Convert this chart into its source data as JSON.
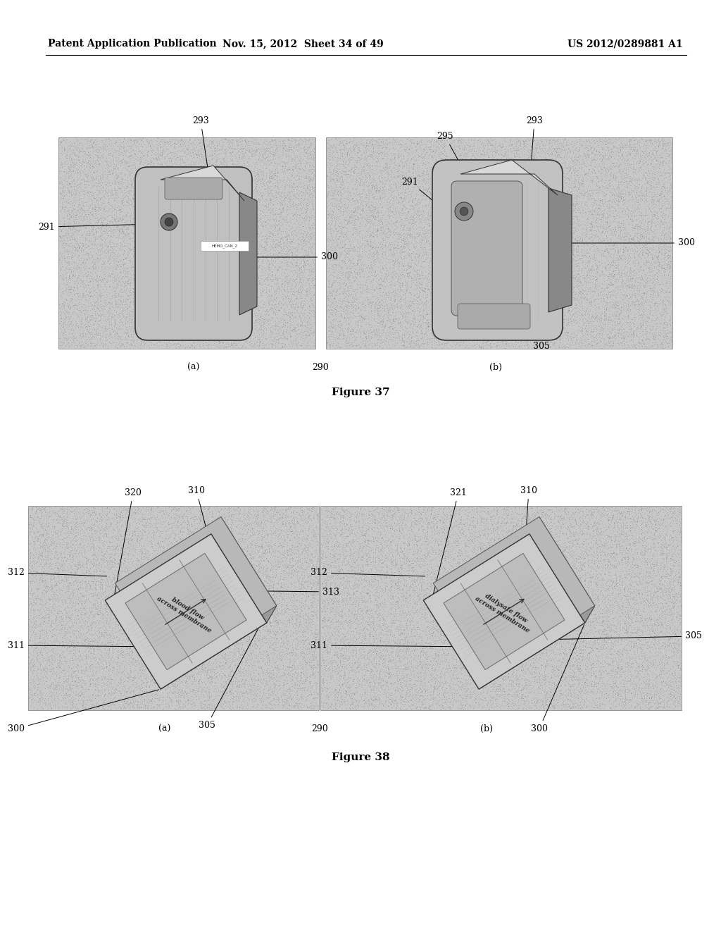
{
  "background_color": "#ffffff",
  "header_left": "Patent Application Publication",
  "header_mid": "Nov. 15, 2012  Sheet 34 of 49",
  "header_right": "US 2012/0289881 A1",
  "fig37_title": "Figure 37",
  "fig38_title": "Figure 38",
  "hatch_color": "#aaaaaa",
  "hatch_bg": "#cccccc",
  "device_front": "#c0c0c0",
  "device_side": "#909090",
  "device_top": "#e0e0e0",
  "device_edge": "#444444",
  "bg_rect": "#c8c8c8",
  "ref_fontsize": 9,
  "label_fontsize": 9,
  "caption_fontsize": 10
}
